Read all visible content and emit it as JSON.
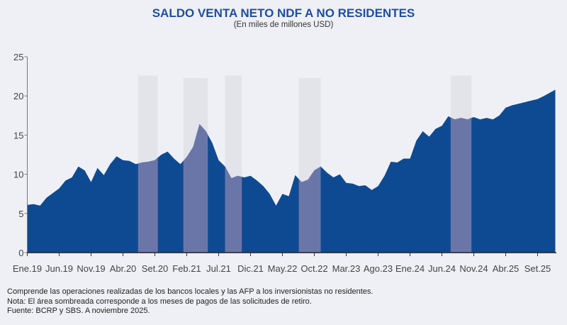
{
  "chart_data": {
    "type": "area",
    "title": "SALDO VENTA NETO NDF A NO RESIDENTES",
    "subtitle": "(En miles de millones USD)",
    "xlabel": "",
    "ylabel": "",
    "ylim": [
      0,
      25
    ],
    "yticks": [
      0,
      5,
      10,
      15,
      20,
      25
    ],
    "xtick_labels": [
      "Ene.19",
      "Jun.19",
      "Nov.19",
      "Abr.20",
      "Set.20",
      "Feb.21",
      "Jul.21",
      "Dic.21",
      "May.22",
      "Oct.22",
      "Mar.23",
      "Ago.23",
      "Ene.24",
      "Jun.24",
      "Nov.24",
      "Abr.25",
      "Set.25"
    ],
    "xticks": [
      "2019-01",
      "2019-06",
      "2019-11",
      "2020-04",
      "2020-09",
      "2021-02",
      "2021-07",
      "2021-12",
      "2022-05",
      "2022-10",
      "2023-03",
      "2023-08",
      "2024-01",
      "2024-06",
      "2024-11",
      "2025-04",
      "2025-09"
    ],
    "grid": false,
    "colors": {
      "area": "#0e4a91",
      "shaded_area": "#6b76a8",
      "shade": "#e3e4ea",
      "title": "#1c4f9f"
    },
    "series": [
      {
        "x": [
          "2019-01",
          "2019-02",
          "2019-03",
          "2019-04",
          "2019-05",
          "2019-06",
          "2019-07",
          "2019-08",
          "2019-09",
          "2019-10",
          "2019-11",
          "2019-12",
          "2020-01",
          "2020-02",
          "2020-03",
          "2020-04",
          "2020-05",
          "2020-06",
          "2020-07",
          "2020-08",
          "2020-09",
          "2020-10",
          "2020-11",
          "2020-12",
          "2021-01",
          "2021-02",
          "2021-03",
          "2021-04",
          "2021-05",
          "2021-06",
          "2021-07",
          "2021-08",
          "2021-09",
          "2021-10",
          "2021-11",
          "2021-12",
          "2022-01",
          "2022-02",
          "2022-03",
          "2022-04",
          "2022-05",
          "2022-06",
          "2022-07",
          "2022-08",
          "2022-09",
          "2022-10",
          "2022-11",
          "2022-12",
          "2023-01",
          "2023-02",
          "2023-03",
          "2023-04",
          "2023-05",
          "2023-06",
          "2023-07",
          "2023-08",
          "2023-09",
          "2023-10",
          "2023-11",
          "2023-12",
          "2024-01",
          "2024-02",
          "2024-03",
          "2024-04",
          "2024-05",
          "2024-06",
          "2024-07",
          "2024-08",
          "2024-09",
          "2024-10",
          "2024-11",
          "2024-12",
          "2025-01",
          "2025-02",
          "2025-03",
          "2025-04",
          "2025-05",
          "2025-06",
          "2025-07",
          "2025-08",
          "2025-09",
          "2025-10",
          "2025-11"
        ],
        "values": [
          6.1,
          6.2,
          6.0,
          7.0,
          7.6,
          8.2,
          9.2,
          9.6,
          11.0,
          10.5,
          9.0,
          10.8,
          9.9,
          11.3,
          12.3,
          11.8,
          11.7,
          11.3,
          11.5,
          11.6,
          11.8,
          12.5,
          12.9,
          12.0,
          11.3,
          12.2,
          13.5,
          16.4,
          15.5,
          14.0,
          11.8,
          11.0,
          9.5,
          9.8,
          9.6,
          9.8,
          9.2,
          8.5,
          7.5,
          6.0,
          7.5,
          7.2,
          9.9,
          9.0,
          9.3,
          10.5,
          11.0,
          10.2,
          9.6,
          10.0,
          8.9,
          8.8,
          8.5,
          8.6,
          8.0,
          8.5,
          9.8,
          11.6,
          11.5,
          12.0,
          12.0,
          14.3,
          15.5,
          14.8,
          15.8,
          16.2,
          17.4,
          17.0,
          17.2,
          17.0,
          17.3,
          17.0,
          17.2,
          17.0,
          17.5,
          18.5,
          18.8,
          19.0,
          19.2,
          19.4,
          19.6,
          20.0,
          20.8
        ]
      }
    ],
    "shaded_periods": [
      {
        "start": "2020-06-12",
        "end": "2020-09-15",
        "top": 22.6
      },
      {
        "start": "2021-01-15",
        "end": "2021-05-10",
        "top": 22.3
      },
      {
        "start": "2021-08-01",
        "end": "2021-10-20",
        "top": 22.6
      },
      {
        "start": "2022-07-18",
        "end": "2022-11-01",
        "top": 22.3
      },
      {
        "start": "2024-07-12",
        "end": "2024-10-20",
        "top": 22.6
      }
    ]
  },
  "notes": [
    "Comprende las operaciones realizadas de los bancos locales y las AFP a los inversionistas no residentes.",
    "Nota: El área sombreada corresponde a los meses de pagos de las solicitudes de retiro.",
    "Fuente: BCRP y SBS. A noviembre 2025."
  ]
}
